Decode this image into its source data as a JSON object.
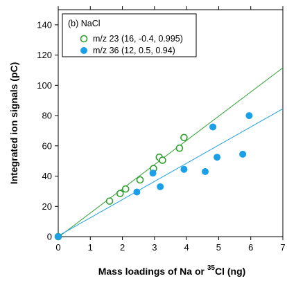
{
  "chart_data": {
    "type": "scatter",
    "title": "",
    "legend_title": "(b) NaCl",
    "legend_position": "top-left",
    "xlabel": "Mass loadings of Na or ",
    "xlabel_superscript": "35",
    "xlabel_suffix": "Cl (ng)",
    "ylabel": "Integrated ion signals (pC)",
    "xlim": [
      0,
      7
    ],
    "ylim": [
      0,
      150
    ],
    "xticks": [
      0,
      1,
      2,
      3,
      4,
      5,
      6,
      7
    ],
    "yticks": [
      0,
      20,
      40,
      60,
      80,
      100,
      120,
      140
    ],
    "grid": false,
    "series": [
      {
        "name": "m/z 23 (16, -0.4, 0.995)",
        "marker": "open-circle",
        "color": "#2ca02c",
        "fit_line": {
          "slope": 16,
          "intercept": -0.4
        },
        "x": [
          0,
          1.6,
          1.93,
          2.1,
          2.55,
          2.97,
          3.15,
          3.25,
          3.78,
          3.92
        ],
        "y": [
          0,
          23.5,
          28.5,
          31.5,
          37.5,
          45,
          52.5,
          50.5,
          58.5,
          65.5
        ]
      },
      {
        "name": "m/z 36 (12, 0.5, 0.94)",
        "marker": "filled-circle",
        "color": "#1a9fe8",
        "fit_line": {
          "slope": 12,
          "intercept": 0.5
        },
        "x": [
          0,
          2.45,
          2.95,
          3.18,
          3.92,
          4.58,
          4.82,
          4.95,
          5.75,
          5.95
        ],
        "y": [
          0,
          29.5,
          42,
          33,
          44.5,
          43,
          72.5,
          52.5,
          54.5,
          80
        ]
      }
    ]
  }
}
